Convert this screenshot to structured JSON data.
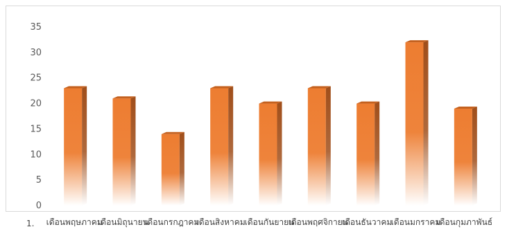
{
  "chart_data": {
    "type": "bar",
    "categories": [
      "เดือนพฤษภาคม",
      "เดือนมิถุนายน",
      "เดือนกรกฎาคม",
      "เดือนสิงหาคม",
      "เดือนกันยายน",
      "เดือนพฤศจิกายน",
      "เดือนธันวาคม",
      "เดือนมกราคม",
      "เดือนกุมภาพันธ์"
    ],
    "values": [
      23,
      21,
      14,
      23,
      20,
      23,
      20,
      32,
      19
    ],
    "ylim": [
      0,
      35
    ],
    "yticks": [
      0,
      5,
      10,
      15,
      20,
      25,
      30,
      35
    ],
    "title": "",
    "xlabel": "",
    "ylabel": "",
    "grid": false,
    "bar_color": "#ed7d31",
    "bar_side_color": "#a04e1a"
  },
  "footer_label": "1."
}
